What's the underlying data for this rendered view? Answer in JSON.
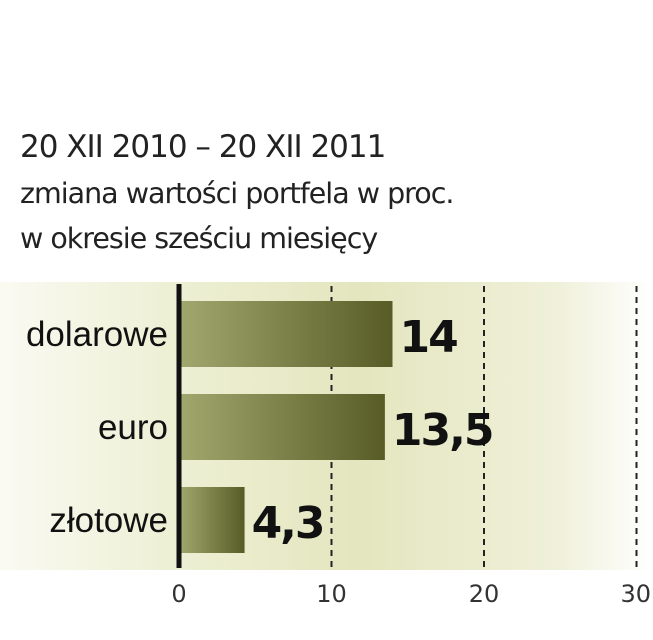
{
  "title_lines": [
    "20 XII 2010 – 20 XII 2011",
    "zmiana wartości portfela w proc.",
    "w okresie sześciu miesięcy"
  ],
  "colors": {
    "bar_dark": "#585b26",
    "bar_light": "#a1a86e",
    "background_left": "#f6f6ea",
    "background_mid": "#e6e8c4",
    "axis": "#111111",
    "grid": "#222222",
    "text": "#111111"
  },
  "chart_data": {
    "type": "bar",
    "orientation": "horizontal",
    "categories": [
      "dolarowe",
      "euro",
      "złotowe"
    ],
    "values": [
      14,
      13.5,
      4.3
    ],
    "value_labels": [
      "14",
      "13,5",
      "4,3"
    ],
    "xlim": [
      0,
      30
    ],
    "x_ticks": [
      0,
      10,
      20,
      30
    ],
    "x_tick_labels": [
      "0",
      "10",
      "20",
      "30"
    ],
    "grid": "vertical dashed lines at 10, 20, 30",
    "legend": "none"
  }
}
